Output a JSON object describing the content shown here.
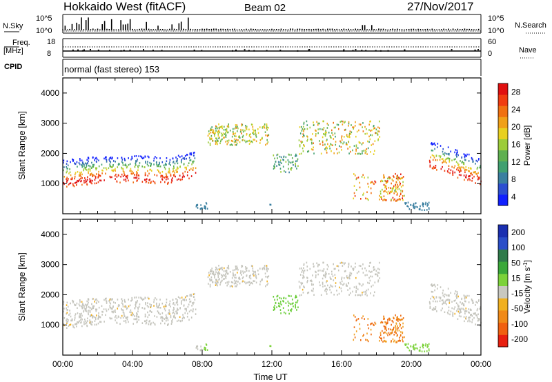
{
  "header": {
    "title": "Hokkaido West (fitACF)",
    "beam": "Beam 02",
    "date": "27/Nov/2017"
  },
  "noise_panel": {
    "left_label": "N.Sky",
    "right_label": "N.Search",
    "left_ticks": [
      "10^5",
      "10^0"
    ],
    "right_ticks": [
      "10^5",
      "10^0"
    ]
  },
  "freq_panel": {
    "left_label_1": "Freq.",
    "left_label_2": "[MHz]",
    "right_label": "Nave",
    "left_ticks": [
      "18",
      "8"
    ],
    "right_ticks": [
      "60",
      "0"
    ]
  },
  "cpid": {
    "label": "CPID",
    "text": "normal (fast stereo) 153"
  },
  "chart_data": [
    {
      "type": "heatmap",
      "name": "power",
      "ylabel": "Slant Range [km]",
      "yticks": [
        "1000",
        "2000",
        "3000",
        "4000"
      ],
      "ylim": [
        0,
        4500
      ],
      "xlim_hours": [
        0,
        24
      ],
      "colorbar": {
        "label": "Power [dB]",
        "ticks": [
          "4",
          "8",
          "12",
          "16",
          "20",
          "24",
          "28"
        ],
        "range": [
          0,
          32
        ],
        "colors": [
          "#1020ff",
          "#2c4fd0",
          "#3a7fa0",
          "#40a070",
          "#5fb050",
          "#9ccc3a",
          "#e8d020",
          "#f0a018",
          "#f07010",
          "#f03c10",
          "#e01010"
        ]
      }
    },
    {
      "type": "heatmap",
      "name": "velocity",
      "ylabel": "Slant Range [km]",
      "yticks": [
        "1000",
        "2000",
        "3000",
        "4000"
      ],
      "ylim": [
        0,
        4500
      ],
      "xlim_hours": [
        0,
        24
      ],
      "xticks": [
        "00:00",
        "04:00",
        "08:00",
        "12:00",
        "16:00",
        "20:00",
        "00:00"
      ],
      "xlabel": "Time UT",
      "colorbar": {
        "label": "Velocity [m s",
        "label_sup": "-1",
        "label_end": "]",
        "ticks": [
          "200",
          "100",
          "50",
          "15",
          "-15",
          "-50",
          "-100",
          "-200"
        ],
        "colors": [
          "#1a2fb0",
          "#2a4ec8",
          "#2f7a4a",
          "#3aa83a",
          "#7cd23a",
          "#c8c8c0",
          "#f0b020",
          "#f08a18",
          "#f06010",
          "#e82010"
        ]
      }
    }
  ]
}
